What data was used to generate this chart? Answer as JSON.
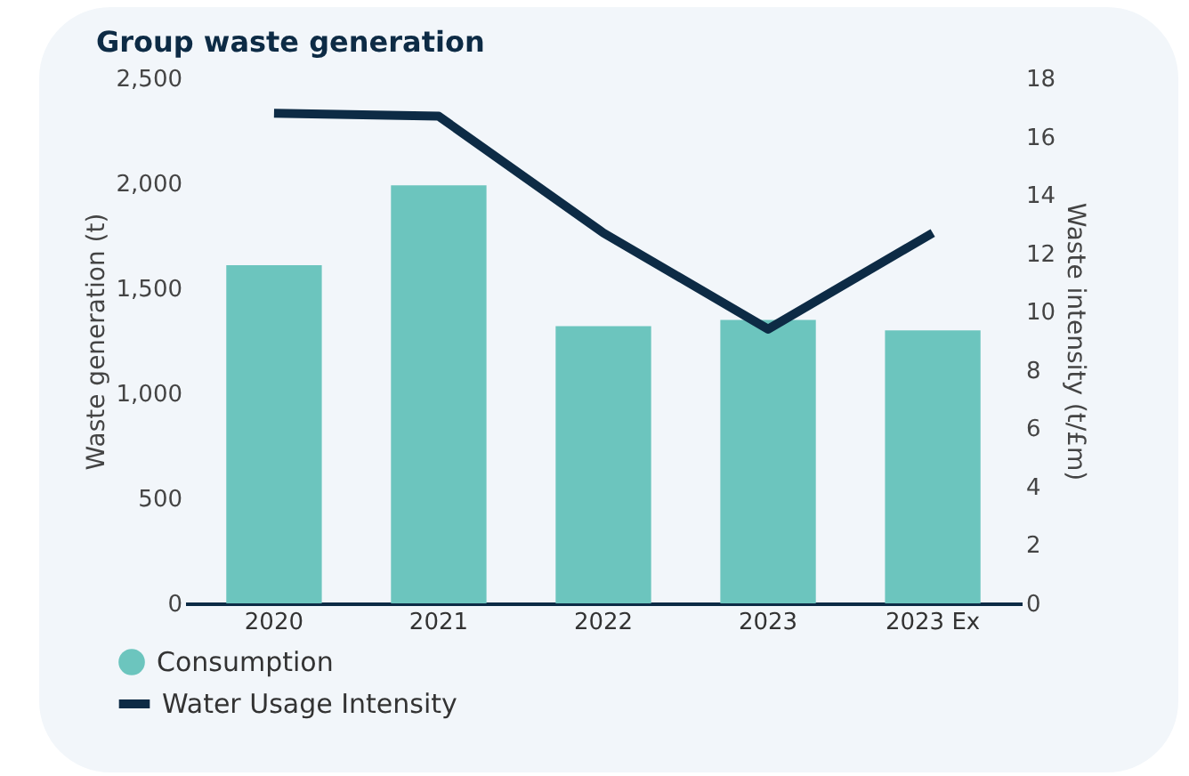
{
  "chart_data": {
    "type": "bar",
    "title": "Group waste generation",
    "ylabel": "Waste generation (t)",
    "y2label": "Waste intensity (t/£m)",
    "categories": [
      "2020",
      "2021",
      "2022",
      "2023",
      "2023 Ex"
    ],
    "series": [
      {
        "name": "Consumption",
        "color": "#6cc5be",
        "values": [
          1610,
          1990,
          1320,
          1350,
          1300
        ]
      },
      {
        "name": "Water Usage Intensity",
        "type": "line",
        "axis": "y2",
        "color": "#0d2b45",
        "values": [
          16.8,
          16.7,
          12.7,
          9.4,
          12.7
        ]
      }
    ],
    "ylim": [
      0,
      2500
    ],
    "yticks": [
      0,
      500,
      {
        "value": 1000,
        "label": "1,000"
      },
      {
        "value": 1500,
        "label": "1,500"
      },
      {
        "value": 2000,
        "label": "2,000"
      },
      {
        "value": 2500,
        "label": "2,500"
      }
    ],
    "y2lim": [
      0,
      18
    ],
    "y2ticks": [
      0,
      2,
      4,
      6,
      8,
      10,
      12,
      14,
      16,
      18
    ],
    "grid": false,
    "legend": "bottom left",
    "marker": "none"
  }
}
